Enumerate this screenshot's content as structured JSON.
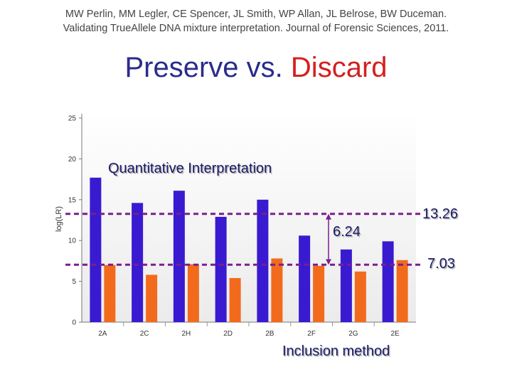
{
  "citation": {
    "line1": "MW Perlin, MM Legler, CE Spencer, JL Smith, WP Allan, JL Belrose, BW Duceman.",
    "line2": "Validating TrueAllele DNA mixture interpretation. Journal of Forensic Sciences, 2011."
  },
  "title": {
    "preserve": "Preserve",
    "vs": "vs.",
    "discard": "Discard"
  },
  "colors": {
    "preserve": "#3a1ad0",
    "discard": "#f26b1d",
    "reference_line": "#7a1f8c",
    "title_blue": "#2b2b8c",
    "title_red": "#d42020"
  },
  "chart_data": {
    "type": "bar",
    "categories": [
      "2A",
      "2C",
      "2H",
      "2D",
      "2B",
      "2F",
      "2G",
      "2E"
    ],
    "series": [
      {
        "values": [
          17.7,
          14.6,
          16.1,
          12.9,
          15.0,
          10.6,
          8.9,
          9.9
        ]
      },
      {
        "values": [
          7.0,
          5.8,
          7.1,
          5.4,
          7.8,
          6.9,
          6.2,
          7.6
        ]
      }
    ],
    "ylabel": "log(LR)",
    "xlabel": "",
    "ylim": [
      0,
      25
    ],
    "yticks": [
      0,
      5,
      10,
      15,
      20,
      25
    ],
    "grid": false,
    "reference_lines": [
      13.26,
      7.03
    ],
    "annotations": {
      "quantitative": "Quantitative Interpretation",
      "inclusion": "Inclusion method",
      "upper_value": "13.26",
      "lower_value": "7.03",
      "difference": "6.24"
    }
  }
}
